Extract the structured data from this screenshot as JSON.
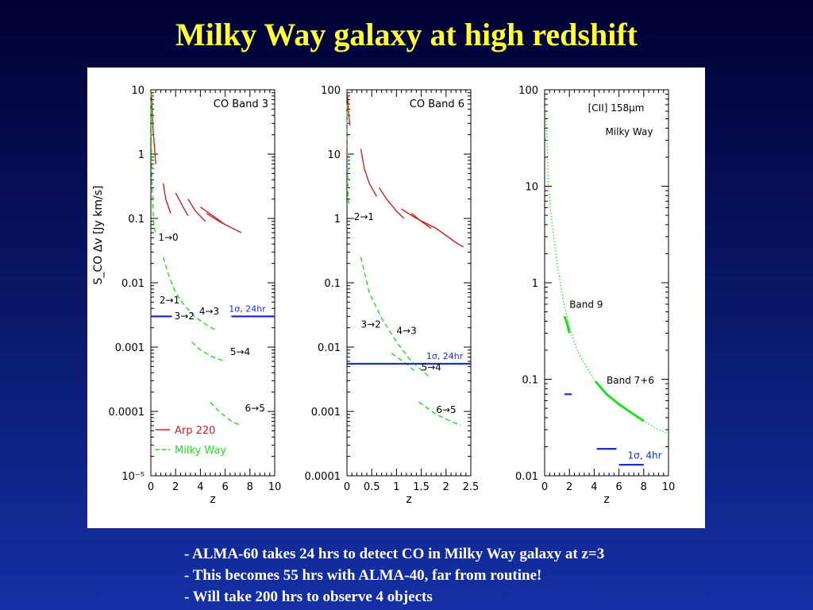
{
  "slide": {
    "title": "Milky Way galaxy at high redshift",
    "bullets": [
      "- ALMA-60 takes 24 hrs to detect CO in Milky Way galaxy at z=3",
      "- This becomes 55 hrs with ALMA-40, far from routine!",
      "- Will take 200 hrs to observe 4 objects"
    ]
  },
  "colors": {
    "arp220": "#cc2222",
    "milky_way": "#22dd22",
    "sensitivity": "#1a2fc8",
    "title": "#ffff33"
  },
  "chart_data": [
    {
      "type": "line",
      "title": "CO Band 3",
      "xlabel": "z",
      "ylabel": "S_CO Δv [Jy km/s]",
      "xlim": [
        0,
        10
      ],
      "ylim": [
        1e-05,
        10
      ],
      "yscale": "log",
      "xticks": [
        "0",
        "2",
        "4",
        "6",
        "8",
        "10"
      ],
      "yticks": [
        "10",
        "1",
        "0.1",
        "0.01",
        "0.001",
        "0.0001",
        "10⁻⁵"
      ],
      "legend": {
        "position": "bottom-left",
        "entries": [
          "Arp 220",
          "Milky Way"
        ]
      },
      "series": [
        {
          "name": "Arp 220",
          "style": "solid",
          "color": "arp220",
          "segments": [
            [
              [
                0.05,
                9
              ],
              [
                0.15,
                3
              ],
              [
                0.3,
                1.2
              ],
              [
                0.4,
                0.7
              ]
            ],
            [
              [
                1.0,
                0.35
              ],
              [
                1.2,
                0.2
              ],
              [
                1.6,
                0.12
              ]
            ],
            [
              [
                2.0,
                0.25
              ],
              [
                2.6,
                0.15
              ],
              [
                3.0,
                0.11
              ]
            ],
            [
              [
                3.0,
                0.2
              ],
              [
                3.6,
                0.13
              ],
              [
                4.4,
                0.09
              ]
            ],
            [
              [
                4.0,
                0.15
              ],
              [
                5.0,
                0.11
              ],
              [
                6.0,
                0.08
              ],
              [
                7.3,
                0.06
              ]
            ],
            [
              [
                4.5,
                0.12
              ],
              [
                5.5,
                0.09
              ],
              [
                6.0,
                0.08
              ]
            ]
          ]
        },
        {
          "name": "Milky Way",
          "style": "dashed",
          "color": "milky_way",
          "segments": [
            [
              [
                0.0,
                9
              ],
              [
                0.05,
                1
              ],
              [
                0.1,
                0.3
              ],
              [
                0.2,
                0.1
              ],
              [
                0.35,
                0.06
              ]
            ],
            [
              [
                1.0,
                0.025
              ],
              [
                1.5,
                0.012
              ],
              [
                2.0,
                0.007
              ],
              [
                2.5,
                0.005
              ],
              [
                3.5,
                0.003
              ],
              [
                4.5,
                0.0022
              ],
              [
                5.3,
                0.0018
              ]
            ],
            [
              [
                3.3,
                0.0012
              ],
              [
                4.0,
                0.0009
              ],
              [
                5.0,
                0.0007
              ],
              [
                6.0,
                0.0006
              ]
            ],
            [
              [
                4.8,
                0.00014
              ],
              [
                5.5,
                0.0001
              ],
              [
                6.5,
                7e-05
              ],
              [
                7.3,
                6e-05
              ]
            ]
          ]
        }
      ],
      "sensitivity": {
        "label": "1σ, 24hr",
        "level": 0.003,
        "segments": [
          [
            0,
            1.7
          ],
          [
            6.5,
            10
          ]
        ]
      },
      "annotations": [
        {
          "text": "1→0",
          "x": 0.6,
          "y": 0.045
        },
        {
          "text": "2→1",
          "x": 0.7,
          "y": 0.0048
        },
        {
          "text": "3→2",
          "x": 1.9,
          "y": 0.0027
        },
        {
          "text": "4→3",
          "x": 3.9,
          "y": 0.0032
        },
        {
          "text": "5→4",
          "x": 6.4,
          "y": 0.00075
        },
        {
          "text": "6→5",
          "x": 7.6,
          "y": 0.0001
        }
      ]
    },
    {
      "type": "line",
      "title": "CO Band 6",
      "xlabel": "z",
      "xlim": [
        0,
        2.5
      ],
      "ylim": [
        0.0001,
        100
      ],
      "yscale": "log",
      "xticks": [
        "0",
        "0.5",
        "1",
        "1.5",
        "2",
        "2.5"
      ],
      "yticks": [
        "100",
        "10",
        "1",
        "0.1",
        "0.01",
        "0.001",
        "0.0001"
      ],
      "series": [
        {
          "name": "Arp 220",
          "style": "solid",
          "color": "arp220",
          "segments": [
            [
              [
                0.01,
                90
              ],
              [
                0.03,
                45
              ],
              [
                0.06,
                28
              ]
            ],
            [
              [
                0.28,
                12
              ],
              [
                0.35,
                6
              ],
              [
                0.45,
                3.5
              ],
              [
                0.6,
                2.2
              ]
            ],
            [
              [
                0.65,
                3
              ],
              [
                0.8,
                2
              ],
              [
                1.0,
                1.3
              ],
              [
                1.15,
                1.0
              ]
            ],
            [
              [
                1.1,
                1.4
              ],
              [
                1.4,
                1.0
              ],
              [
                1.8,
                0.7
              ],
              [
                2.2,
                0.42
              ],
              [
                2.35,
                0.36
              ]
            ],
            [
              [
                1.3,
                1.2
              ],
              [
                1.5,
                0.9
              ],
              [
                1.7,
                0.7
              ]
            ]
          ]
        },
        {
          "name": "Milky Way",
          "style": "dashed",
          "color": "milky_way",
          "segments": [
            [
              [
                0.0,
                60
              ],
              [
                0.01,
                10
              ],
              [
                0.02,
                2
              ],
              [
                0.06,
                1.5
              ]
            ],
            [
              [
                0.28,
                0.25
              ],
              [
                0.45,
                0.07
              ],
              [
                0.7,
                0.028
              ],
              [
                1.0,
                0.012
              ],
              [
                1.3,
                0.006
              ],
              [
                1.65,
                0.0035
              ]
            ],
            [
              [
                0.9,
                0.008
              ],
              [
                1.2,
                0.0055
              ],
              [
                1.4,
                0.004
              ]
            ],
            [
              [
                1.45,
                0.0014
              ],
              [
                1.8,
                0.0009
              ],
              [
                2.1,
                0.0007
              ],
              [
                2.3,
                0.0006
              ]
            ]
          ]
        }
      ],
      "sensitivity": {
        "label": "1σ, 24hr",
        "level": 0.0055,
        "segments": [
          [
            0,
            2.5
          ]
        ]
      },
      "annotations": [
        {
          "text": "2→1",
          "x": 0.14,
          "y": 0.95
        },
        {
          "text": "3→2",
          "x": 0.28,
          "y": 0.02
        },
        {
          "text": "4→3",
          "x": 1.0,
          "y": 0.016
        },
        {
          "text": "5→4",
          "x": 1.5,
          "y": 0.0043
        },
        {
          "text": "6→5",
          "x": 1.8,
          "y": 0.00095
        }
      ]
    },
    {
      "type": "line",
      "title": "[CII] 158μm Milky Way",
      "xlabel": "z",
      "xlim": [
        0,
        10
      ],
      "ylim": [
        0.01,
        100
      ],
      "yscale": "log",
      "xticks": [
        "0",
        "2",
        "4",
        "6",
        "8",
        "10"
      ],
      "yticks": [
        "100",
        "10",
        "1",
        "0.1",
        "0.01"
      ],
      "series": [
        {
          "name": "Milky Way",
          "style": "dotted",
          "color": "milky_way",
          "segments": [
            [
              [
                0.1,
                60
              ],
              [
                0.3,
                10
              ],
              [
                0.6,
                4
              ],
              [
                1.0,
                1.6
              ],
              [
                1.5,
                0.65
              ],
              [
                2.0,
                0.35
              ],
              [
                2.5,
                0.22
              ],
              [
                3.0,
                0.16
              ],
              [
                4.0,
                0.1
              ],
              [
                5.0,
                0.07
              ],
              [
                6.0,
                0.055
              ],
              [
                7.0,
                0.045
              ],
              [
                8.0,
                0.037
              ],
              [
                9.0,
                0.031
              ],
              [
                10.0,
                0.027
              ]
            ]
          ]
        },
        {
          "name": "Band 9",
          "style": "thick",
          "color": "milky_way",
          "segments": [
            [
              [
                1.6,
                0.45
              ],
              [
                1.8,
                0.38
              ],
              [
                2.0,
                0.3
              ]
            ]
          ]
        },
        {
          "name": "Band 7+6",
          "style": "thick",
          "color": "milky_way",
          "segments": [
            [
              [
                4.1,
                0.095
              ],
              [
                5.0,
                0.07
              ],
              [
                6.0,
                0.055
              ],
              [
                7.0,
                0.045
              ],
              [
                8.0,
                0.037
              ]
            ]
          ]
        }
      ],
      "sensitivity": {
        "label": "1σ, 4hr",
        "marks": [
          {
            "x": [
              1.6,
              2.2
            ],
            "level": 0.07
          },
          {
            "x": [
              4.2,
              5.8
            ],
            "level": 0.019
          },
          {
            "x": [
              6.0,
              8.0
            ],
            "level": 0.013
          }
        ]
      },
      "annotations": [
        {
          "text": "[CII] 158μm",
          "x": 3.5,
          "y": 60,
          "role": "title"
        },
        {
          "text": "Milky Way",
          "x": 4.9,
          "y": 34,
          "role": "title"
        },
        {
          "text": "Band 9",
          "x": 2.0,
          "y": 0.55
        },
        {
          "text": "Band 7+6",
          "x": 5.0,
          "y": 0.09
        },
        {
          "text": "1σ, 4hr",
          "x": 6.7,
          "y": 0.015
        }
      ]
    }
  ]
}
